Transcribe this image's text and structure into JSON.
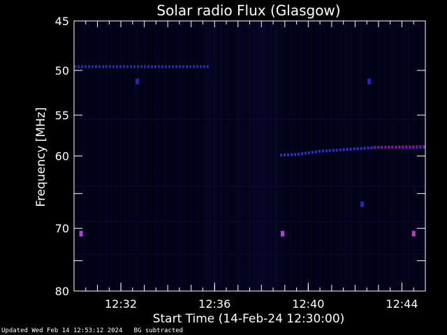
{
  "chart_data": {
    "type": "heatmap",
    "title": "Solar radio Flux (Glasgow)",
    "xlabel": "Start Time (14-Feb-24 12:30:00)",
    "ylabel": "Frequency [MHz]",
    "x_unit": "minutes after 12:30:00",
    "xlim": [
      0,
      15
    ],
    "ylim": [
      45,
      80
    ],
    "y_scale": "log",
    "y_inverted": true,
    "xticks": [
      {
        "value": 2,
        "label": "12:32"
      },
      {
        "value": 6,
        "label": "12:36"
      },
      {
        "value": 10,
        "label": "12:40"
      },
      {
        "value": 14,
        "label": "12:44"
      }
    ],
    "yticks": [
      {
        "value": 45,
        "label": "45"
      },
      {
        "value": 50,
        "label": "50"
      },
      {
        "value": 55,
        "label": "55"
      },
      {
        "value": 60,
        "label": "60"
      },
      {
        "value": 70,
        "label": "70"
      },
      {
        "value": 80,
        "label": "80"
      }
    ],
    "series": [
      {
        "points": [
          [
            0.0,
            49.6
          ],
          [
            5.8,
            49.6
          ]
        ],
        "color": "#3030b0"
      },
      {
        "points": [
          [
            8.8,
            59.9
          ],
          [
            9.5,
            59.8
          ],
          [
            10.0,
            59.6
          ],
          [
            10.5,
            59.4
          ],
          [
            11.0,
            59.3
          ],
          [
            11.5,
            59.2
          ],
          [
            12.0,
            59.1
          ],
          [
            12.5,
            59.0
          ],
          [
            13.0,
            58.9
          ],
          [
            13.5,
            58.9
          ],
          [
            14.0,
            58.9
          ],
          [
            15.0,
            58.9
          ]
        ],
        "color": "#3434e0"
      },
      {
        "points": [
          [
            12.8,
            58.9
          ],
          [
            15.0,
            58.8
          ]
        ],
        "color": "#8a1a7a"
      }
    ],
    "spots": [
      {
        "x": 0.3,
        "y": 70.8,
        "color": "#b040d0"
      },
      {
        "x": 8.9,
        "y": 70.8,
        "color": "#b040d0"
      },
      {
        "x": 14.5,
        "y": 70.8,
        "color": "#b040d0"
      },
      {
        "x": 2.7,
        "y": 51.2,
        "color": "#2828a0"
      },
      {
        "x": 12.6,
        "y": 51.2,
        "color": "#2828a0"
      },
      {
        "x": 12.3,
        "y": 66.5,
        "color": "#2828a0"
      }
    ],
    "colors": {
      "background": "#000000",
      "axis": "#ffffff",
      "noise": "#101050"
    }
  },
  "footer": {
    "updated": "Updated Wed Feb 14 12:53:12 2024",
    "note": "BG subtracted"
  }
}
